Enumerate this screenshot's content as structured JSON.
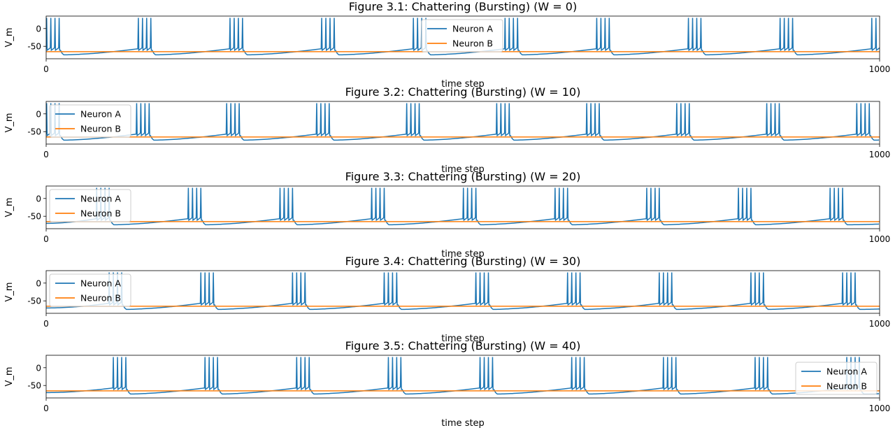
{
  "chart_data": [
    {
      "type": "line",
      "title": "Figure 3.1: Chattering (Bursting) (W = 0)",
      "xlabel": "time step",
      "ylabel": "V_m",
      "xlim": [
        0,
        1000
      ],
      "ylim": [
        -85,
        35
      ],
      "xticks": [
        0,
        1000
      ],
      "yticks": [
        0,
        -50
      ],
      "legend": "upper-center",
      "grid": false,
      "series": [
        {
          "name": "Neuron A",
          "color": "#1f77b4",
          "kind": "bursting",
          "burst_times": [
            0,
            110,
            220,
            330,
            440,
            550,
            660,
            770,
            880,
            990
          ],
          "spikes_per_burst": 4,
          "rest_mv": -70,
          "min_mv": -74,
          "threshold_mv": -57,
          "peak_mv": 30
        },
        {
          "name": "Neuron B",
          "color": "#ff7f0e",
          "kind": "flat",
          "value": -65
        }
      ]
    },
    {
      "type": "line",
      "title": "Figure 3.2: Chattering (Bursting) (W = 10)",
      "xlabel": "time step",
      "ylabel": "V_m",
      "xlim": [
        0,
        1000
      ],
      "ylim": [
        -85,
        35
      ],
      "xticks": [
        0,
        1000
      ],
      "yticks": [
        0,
        -50
      ],
      "legend": "upper-left",
      "grid": false,
      "series": [
        {
          "name": "Neuron A",
          "color": "#1f77b4",
          "kind": "bursting",
          "burst_times": [
            0,
            108,
            216,
            324,
            432,
            540,
            648,
            756,
            864,
            972
          ],
          "spikes_per_burst": 4,
          "rest_mv": -70,
          "min_mv": -74,
          "threshold_mv": -57,
          "peak_mv": 30
        },
        {
          "name": "Neuron B",
          "color": "#ff7f0e",
          "kind": "flat",
          "value": -65
        }
      ]
    },
    {
      "type": "line",
      "title": "Figure 3.3: Chattering (Bursting) (W = 20)",
      "xlabel": "time step",
      "ylabel": "V_m",
      "xlim": [
        0,
        1000
      ],
      "ylim": [
        -85,
        35
      ],
      "xticks": [
        0,
        1000
      ],
      "yticks": [
        0,
        -50
      ],
      "legend": "upper-left",
      "grid": false,
      "series": [
        {
          "name": "Neuron A",
          "color": "#1f77b4",
          "kind": "bursting",
          "burst_times": [
            60,
            170,
            280,
            390,
            500,
            610,
            720,
            830,
            940
          ],
          "spikes_per_burst": 4,
          "rest_mv": -70,
          "min_mv": -74,
          "threshold_mv": -57,
          "peak_mv": 30
        },
        {
          "name": "Neuron B",
          "color": "#ff7f0e",
          "kind": "flat",
          "value": -65
        }
      ]
    },
    {
      "type": "line",
      "title": "Figure 3.4: Chattering (Bursting) (W = 30)",
      "xlabel": "time step",
      "ylabel": "V_m",
      "xlim": [
        0,
        1000
      ],
      "ylim": [
        -85,
        35
      ],
      "xticks": [
        0,
        1000
      ],
      "yticks": [
        0,
        -50
      ],
      "legend": "upper-left",
      "grid": false,
      "series": [
        {
          "name": "Neuron A",
          "color": "#1f77b4",
          "kind": "bursting",
          "burst_times": [
            75,
            185,
            295,
            405,
            515,
            625,
            735,
            845,
            955
          ],
          "spikes_per_burst": 4,
          "rest_mv": -70,
          "min_mv": -74,
          "threshold_mv": -57,
          "peak_mv": 30
        },
        {
          "name": "Neuron B",
          "color": "#ff7f0e",
          "kind": "flat",
          "value": -65
        }
      ]
    },
    {
      "type": "line",
      "title": "Figure 3.5: Chattering (Bursting) (W = 40)",
      "xlabel": "time step",
      "ylabel": "V_m",
      "xlim": [
        0,
        1000
      ],
      "ylim": [
        -85,
        35
      ],
      "xticks": [
        0,
        1000
      ],
      "yticks": [
        0,
        -50
      ],
      "legend": "lower-right",
      "grid": false,
      "series": [
        {
          "name": "Neuron A",
          "color": "#1f77b4",
          "kind": "bursting",
          "burst_times": [
            80,
            190,
            300,
            410,
            520,
            630,
            740,
            850,
            960
          ],
          "spikes_per_burst": 4,
          "rest_mv": -70,
          "min_mv": -74,
          "threshold_mv": -57,
          "peak_mv": 30
        },
        {
          "name": "Neuron B",
          "color": "#ff7f0e",
          "kind": "flat",
          "value": -65
        }
      ]
    }
  ]
}
